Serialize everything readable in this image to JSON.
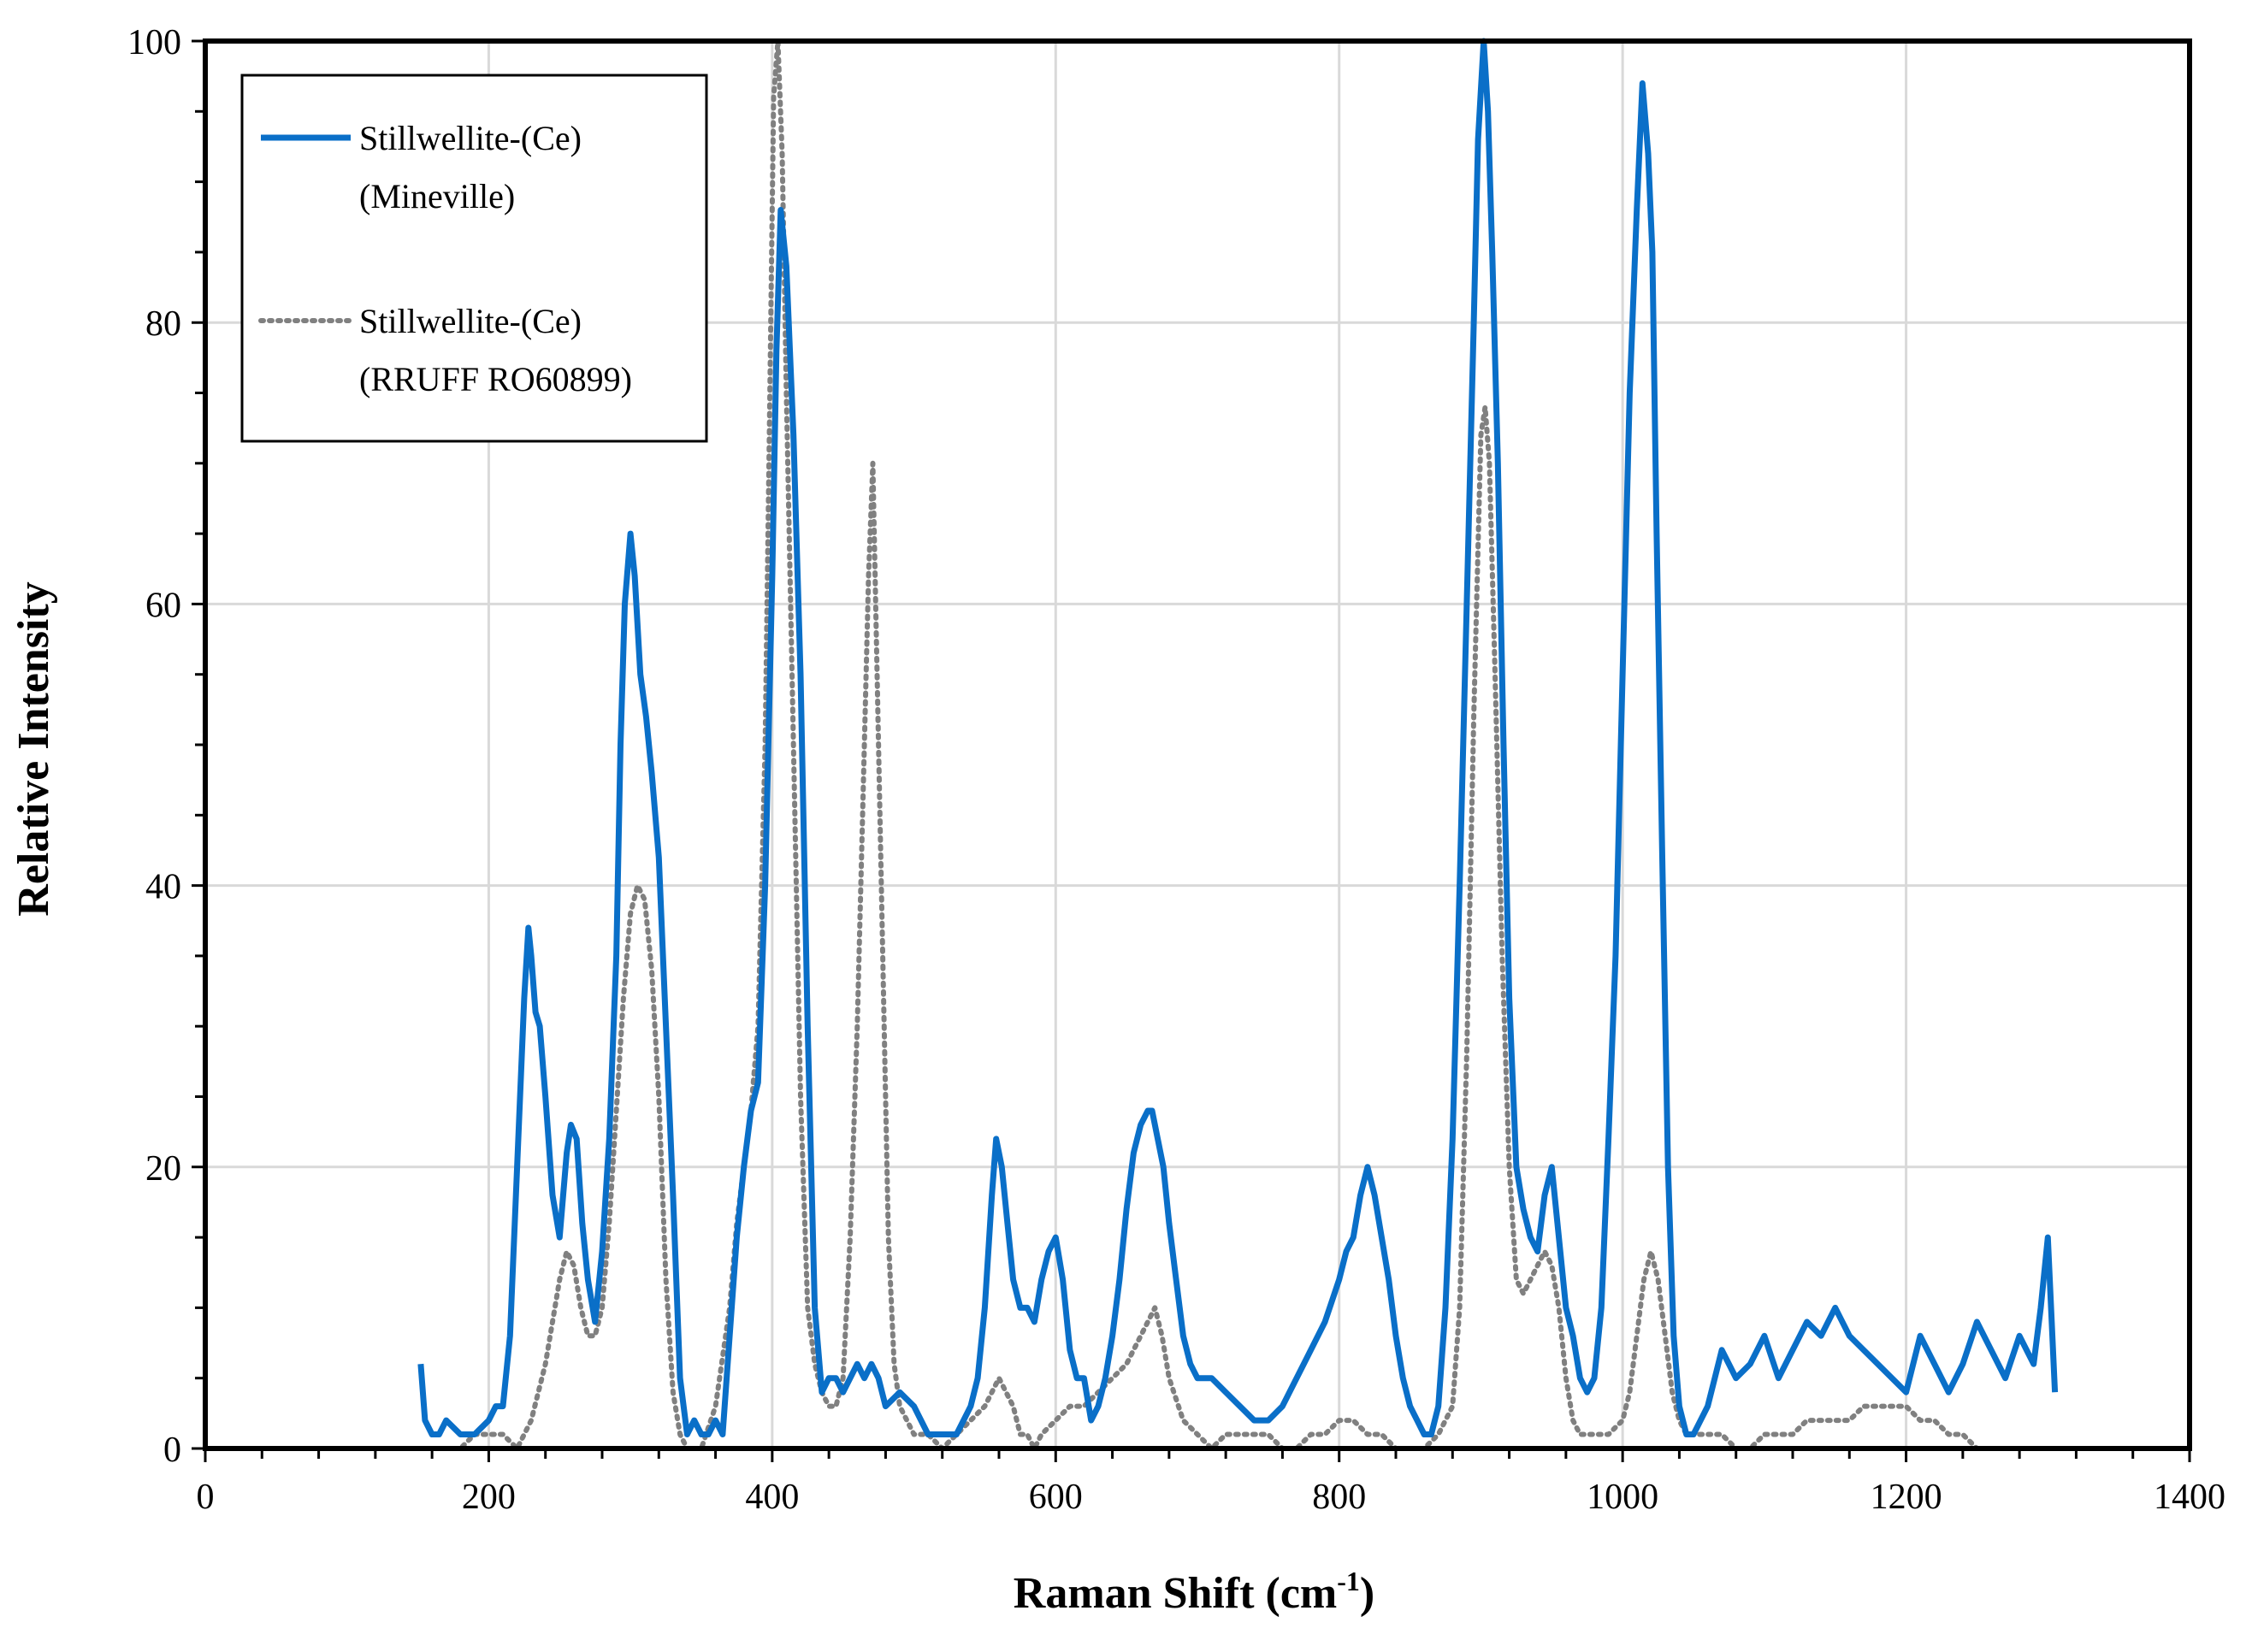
{
  "chart_data": {
    "type": "line",
    "title": "",
    "xlabel": "Raman Shift (cm",
    "xlabel_sup": "-1",
    "xlabel_end": ")",
    "ylabel": "Relative Intensity",
    "xlim": [
      0,
      1400
    ],
    "ylim": [
      0,
      100
    ],
    "x_ticks": [
      0,
      200,
      400,
      600,
      800,
      1000,
      1200,
      1400
    ],
    "y_ticks": [
      0,
      20,
      40,
      60,
      80,
      100
    ],
    "x_tick_labels": [
      "0",
      "200",
      "400",
      "600",
      "800",
      "1000",
      "1200",
      "1400"
    ],
    "y_tick_labels": [
      "0",
      "20",
      "40",
      "60",
      "80",
      "100"
    ],
    "grid": true,
    "legend_position": "top-left",
    "series": [
      {
        "name": "Stillwellite-(Ce) (Mineville)",
        "legend_line1": "Stillwellite-(Ce)",
        "legend_line2": "(Mineville)",
        "color": "#0A6FC8",
        "style": "solid",
        "x": [
          152,
          155,
          160,
          165,
          170,
          180,
          190,
          200,
          205,
          210,
          215,
          220,
          225,
          228,
          230,
          233,
          236,
          240,
          245,
          250,
          255,
          258,
          262,
          266,
          270,
          275,
          280,
          285,
          290,
          293,
          296,
          300,
          303,
          307,
          311,
          315,
          320,
          325,
          330,
          335,
          340,
          345,
          350,
          355,
          360,
          365,
          370,
          375,
          380,
          385,
          390,
          395,
          400,
          403,
          406,
          410,
          415,
          420,
          425,
          430,
          435,
          440,
          445,
          450,
          455,
          460,
          465,
          470,
          475,
          480,
          490,
          500,
          510,
          520,
          530,
          540,
          545,
          550,
          555,
          558,
          562,
          566,
          570,
          575,
          580,
          585,
          590,
          595,
          600,
          605,
          610,
          615,
          620,
          625,
          630,
          635,
          640,
          645,
          650,
          655,
          660,
          665,
          668,
          672,
          676,
          680,
          685,
          690,
          695,
          700,
          710,
          720,
          730,
          740,
          750,
          760,
          770,
          780,
          790,
          800,
          805,
          810,
          815,
          820,
          825,
          830,
          835,
          840,
          845,
          850,
          855,
          860,
          865,
          870,
          875,
          880,
          885,
          890,
          895,
          898,
          902,
          905,
          908,
          912,
          916,
          920,
          925,
          930,
          935,
          940,
          945,
          950,
          955,
          960,
          965,
          970,
          975,
          980,
          985,
          990,
          995,
          1000,
          1005,
          1010,
          1014,
          1018,
          1021,
          1024,
          1028,
          1032,
          1036,
          1040,
          1045,
          1050,
          1055,
          1060,
          1065,
          1070,
          1075,
          1080,
          1090,
          1100,
          1110,
          1120,
          1130,
          1140,
          1150,
          1160,
          1170,
          1180,
          1190,
          1200,
          1210,
          1220,
          1230,
          1240,
          1250,
          1260,
          1270,
          1280,
          1290,
          1295,
          1300,
          1305
        ],
        "y": [
          6,
          2,
          1,
          1,
          2,
          1,
          1,
          2,
          3,
          3,
          8,
          20,
          32,
          37,
          35,
          31,
          30,
          25,
          18,
          15,
          21,
          23,
          22,
          16,
          12,
          9,
          14,
          22,
          35,
          50,
          60,
          65,
          62,
          55,
          52,
          48,
          42,
          30,
          18,
          5,
          1,
          2,
          1,
          1,
          2,
          1,
          8,
          15,
          20,
          24,
          26,
          40,
          62,
          78,
          88,
          84,
          72,
          55,
          30,
          10,
          4,
          5,
          5,
          4,
          5,
          6,
          5,
          6,
          5,
          3,
          4,
          3,
          1,
          1,
          1,
          3,
          5,
          10,
          18,
          22,
          20,
          16,
          12,
          10,
          10,
          9,
          12,
          14,
          15,
          12,
          7,
          5,
          5,
          2,
          3,
          5,
          8,
          12,
          17,
          21,
          23,
          24,
          24,
          22,
          20,
          16,
          12,
          8,
          6,
          5,
          5,
          4,
          3,
          2,
          2,
          3,
          5,
          7,
          9,
          12,
          14,
          15,
          18,
          20,
          18,
          15,
          12,
          8,
          5,
          3,
          2,
          1,
          1,
          3,
          10,
          22,
          40,
          60,
          80,
          93,
          100,
          95,
          85,
          70,
          50,
          32,
          20,
          17,
          15,
          14,
          18,
          20,
          15,
          10,
          8,
          5,
          4,
          5,
          10,
          22,
          35,
          55,
          75,
          88,
          97,
          92,
          85,
          65,
          42,
          20,
          8,
          3,
          1,
          1,
          2,
          3,
          5,
          7,
          6,
          5,
          6,
          8,
          5,
          7,
          9,
          8,
          10,
          8,
          7,
          6,
          5,
          4,
          8,
          6,
          4,
          6,
          9,
          7,
          5,
          8,
          6,
          10,
          15,
          4
        ],
        "peaks": [
          {
            "x": 303,
            "y": 65
          },
          {
            "x": 406,
            "y": 88
          },
          {
            "x": 905,
            "y": 100
          },
          {
            "x": 1021,
            "y": 97
          }
        ]
      },
      {
        "name": "Stillwellite-(Ce) (RRUFF RO60899)",
        "legend_line1": "Stillwellite-(Ce)",
        "legend_line2": "(RRUFF RO60899)",
        "color": "#808080",
        "style": "dotted",
        "x": [
          170,
          180,
          190,
          200,
          210,
          220,
          230,
          240,
          250,
          255,
          260,
          265,
          270,
          275,
          280,
          285,
          290,
          295,
          300,
          305,
          310,
          315,
          320,
          325,
          330,
          335,
          340,
          350,
          360,
          370,
          375,
          380,
          385,
          390,
          395,
          398,
          401,
          404,
          407,
          410,
          415,
          420,
          425,
          430,
          435,
          440,
          445,
          450,
          455,
          460,
          465,
          468,
          471,
          474,
          478,
          482,
          486,
          490,
          495,
          500,
          510,
          520,
          530,
          540,
          550,
          555,
          560,
          565,
          570,
          575,
          580,
          585,
          590,
          600,
          610,
          620,
          630,
          640,
          650,
          660,
          665,
          670,
          675,
          680,
          690,
          700,
          710,
          720,
          730,
          740,
          750,
          760,
          770,
          780,
          790,
          800,
          810,
          820,
          830,
          840,
          850,
          860,
          870,
          880,
          885,
          890,
          895,
          900,
          903,
          906,
          910,
          915,
          920,
          925,
          930,
          935,
          940,
          945,
          950,
          955,
          960,
          965,
          970,
          980,
          990,
          1000,
          1005,
          1010,
          1015,
          1020,
          1025,
          1030,
          1035,
          1040,
          1045,
          1050,
          1060,
          1070,
          1080,
          1090,
          1100,
          1110,
          1120,
          1130,
          1140,
          1150,
          1160,
          1170,
          1180,
          1190,
          1200,
          1210,
          1220,
          1230,
          1240,
          1250,
          1260,
          1270,
          1280,
          1290,
          1300
        ],
        "y": [
          0,
          0,
          1,
          1,
          1,
          0,
          2,
          6,
          12,
          14,
          13,
          10,
          8,
          8,
          10,
          16,
          24,
          32,
          38,
          40,
          39,
          34,
          25,
          12,
          4,
          1,
          0,
          0,
          3,
          10,
          16,
          20,
          24,
          30,
          50,
          72,
          96,
          100,
          92,
          75,
          50,
          25,
          10,
          6,
          4,
          3,
          3,
          5,
          15,
          30,
          50,
          62,
          70,
          55,
          35,
          15,
          6,
          3,
          2,
          1,
          1,
          0,
          1,
          2,
          3,
          4,
          5,
          4,
          3,
          1,
          1,
          0,
          1,
          2,
          3,
          3,
          4,
          5,
          6,
          8,
          9,
          10,
          8,
          5,
          2,
          1,
          0,
          1,
          1,
          1,
          1,
          0,
          0,
          1,
          1,
          2,
          2,
          1,
          1,
          0,
          0,
          0,
          1,
          3,
          10,
          28,
          52,
          72,
          74,
          70,
          55,
          35,
          20,
          12,
          11,
          12,
          13,
          14,
          13,
          10,
          5,
          2,
          1,
          1,
          1,
          2,
          4,
          8,
          12,
          14,
          12,
          8,
          4,
          2,
          1,
          1,
          1,
          1,
          0,
          0,
          1,
          1,
          1,
          2,
          2,
          2,
          2,
          3,
          3,
          3,
          3,
          2,
          2,
          1,
          1,
          0,
          0,
          0,
          0,
          0,
          0
        ],
        "peaks": [
          {
            "x": 404,
            "y": 100
          },
          {
            "x": 471,
            "y": 70
          },
          {
            "x": 903,
            "y": 74
          },
          {
            "x": 305,
            "y": 40
          }
        ]
      }
    ]
  }
}
